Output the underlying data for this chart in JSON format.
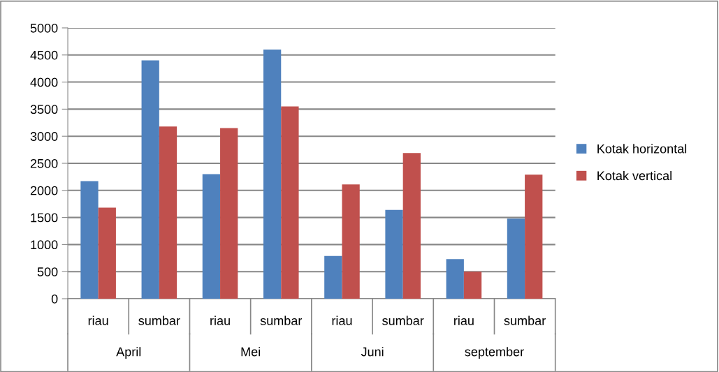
{
  "chart_data": {
    "type": "bar",
    "categories": [
      "riau",
      "sumbar",
      "riau",
      "sumbar",
      "riau",
      "sumbar",
      "riau",
      "sumbar"
    ],
    "annotations": [
      "April",
      "Mei",
      "Juni",
      "september"
    ],
    "series": [
      {
        "name": "Kotak horizontal",
        "color": "#4f81bd",
        "values": [
          2170,
          4400,
          2300,
          4600,
          790,
          1640,
          730,
          1480
        ]
      },
      {
        "name": "Kotak vertical",
        "color": "#c0504d",
        "values": [
          1680,
          3180,
          3150,
          3550,
          2110,
          2690,
          500,
          2290
        ]
      }
    ],
    "ylim": [
      0,
      5000
    ],
    "yticks": [
      0,
      500,
      1000,
      1500,
      2000,
      2500,
      3000,
      3500,
      4000,
      4500,
      5000
    ],
    "grid": "y",
    "legend": "right"
  }
}
